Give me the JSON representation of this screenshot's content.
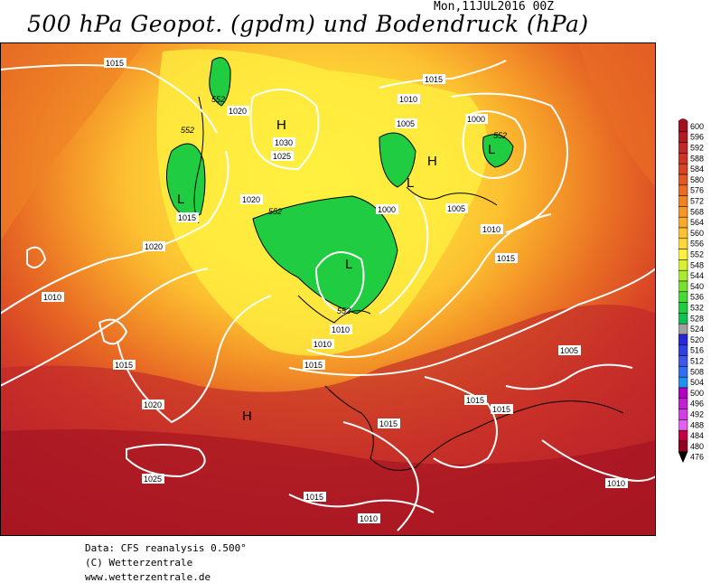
{
  "header": {
    "title": "500 hPa Geopot. (gpdm) und Bodendruck (hPa)",
    "datetime": "Mon,11JUL2016 00Z"
  },
  "footer": {
    "line1": "Data: CFS reanalysis 0.500°",
    "line2": "(C) Wetterzentrale",
    "line3": "www.wetterzentrale.de"
  },
  "legend": {
    "levels": [
      "600",
      "596",
      "592",
      "588",
      "584",
      "580",
      "576",
      "572",
      "568",
      "564",
      "560",
      "556",
      "552",
      "548",
      "544",
      "540",
      "536",
      "532",
      "528",
      "524",
      "520",
      "516",
      "512",
      "508",
      "504",
      "500",
      "496",
      "492",
      "488",
      "484",
      "480",
      "476"
    ],
    "colors": [
      "#a01020",
      "#b01c24",
      "#c0282a",
      "#cc3628",
      "#d84426",
      "#e05826",
      "#e86c24",
      "#ee8224",
      "#f49628",
      "#f8aa2c",
      "#fcc030",
      "#fed838",
      "#fff040",
      "#d8f030",
      "#a8ec30",
      "#78e030",
      "#48d838",
      "#20cc40",
      "#10c050",
      "#a0a0a0",
      "#2828d8",
      "#3040e0",
      "#4058e8",
      "#3070f0",
      "#2090f0",
      "#b000c0",
      "#c020d0",
      "#d040e0",
      "#e060f0",
      "#c00040",
      "#900020",
      "#000000"
    ]
  },
  "map": {
    "pressure_labels": [
      "1015",
      "1010",
      "1015",
      "1005",
      "1000",
      "1020",
      "1030",
      "1025",
      "1020",
      "1015",
      "1020",
      "1010",
      "1000",
      "1005",
      "1010",
      "1015",
      "1010",
      "1015",
      "1010",
      "1015",
      "1020",
      "1015",
      "1015",
      "1015",
      "1025",
      "1015",
      "1010",
      "1010",
      "1005"
    ],
    "geopot_labels": [
      "552",
      "552",
      "552",
      "552",
      "552"
    ],
    "pressure_centers": [
      "H",
      "H",
      "L",
      "L",
      "L",
      "L",
      "H"
    ]
  }
}
